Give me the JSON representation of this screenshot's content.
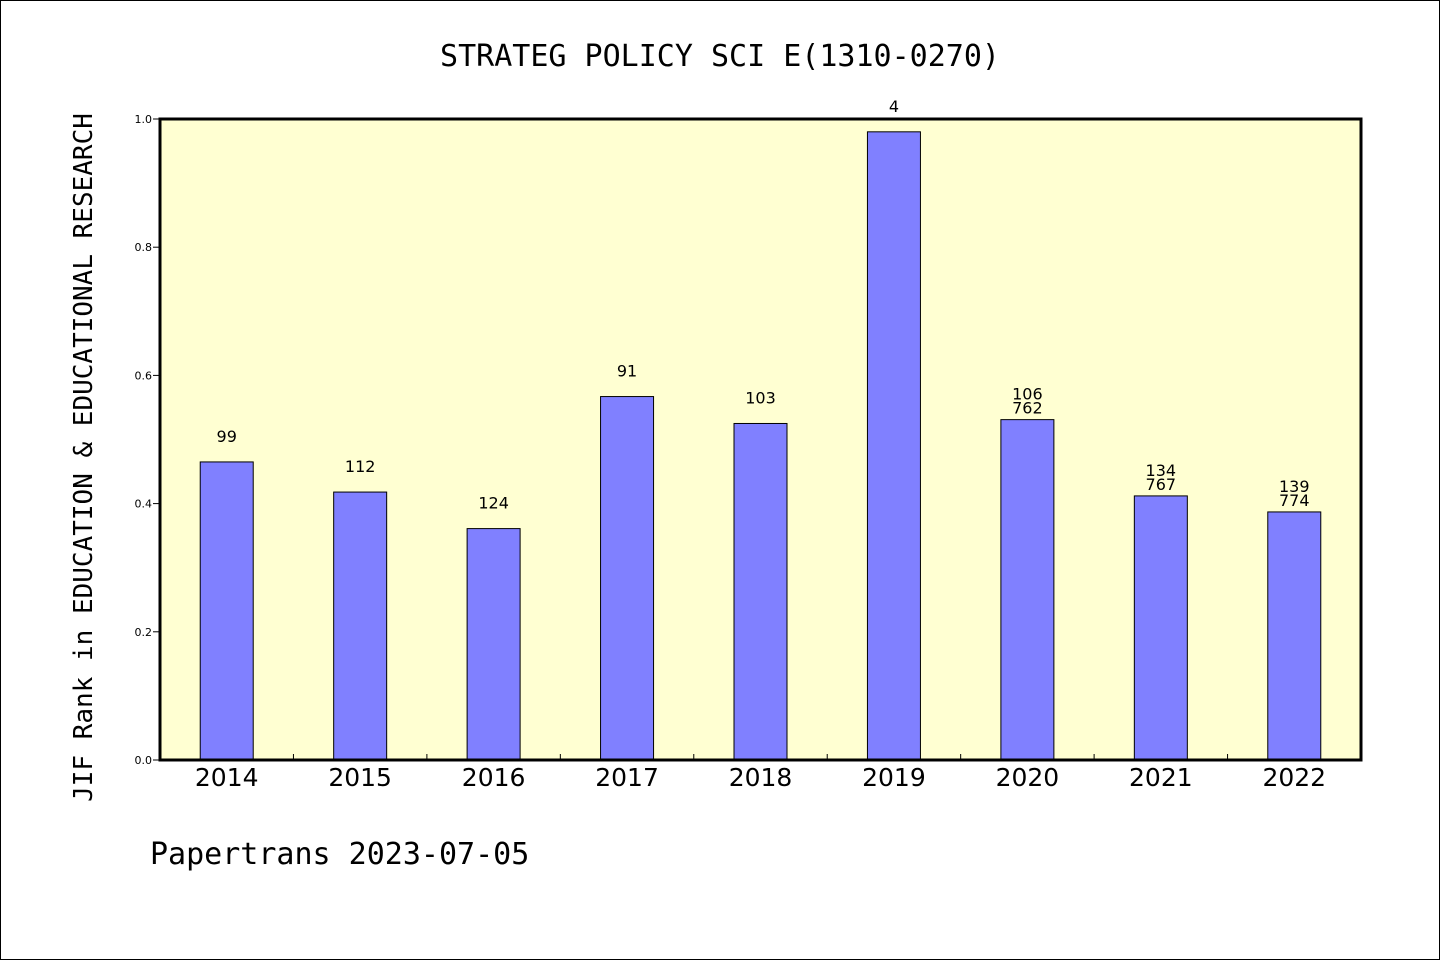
{
  "footer": "Papertrans 2023-07-05",
  "colors": {
    "plot_background": "#ffffd2",
    "bar_fill": "#8080ff",
    "bar_stroke": "#000000",
    "axis": "#000000"
  },
  "chart_data": {
    "type": "bar",
    "title": "STRATEG POLICY SCI E(1310-0270)",
    "xlabel": "",
    "ylabel": "JIF Rank in EDUCATION & EDUCATIONAL RESEARCH",
    "ylim": [
      0,
      1.0
    ],
    "yticks": [
      "0.0",
      "0.2",
      "0.4",
      "0.6",
      "0.8",
      "1.0"
    ],
    "categories": [
      "2014",
      "2015",
      "2016",
      "2017",
      "2018",
      "2019",
      "2020",
      "2021",
      "2022"
    ],
    "values": [
      0.465,
      0.418,
      0.361,
      0.567,
      0.525,
      0.98,
      0.531,
      0.412,
      0.387
    ],
    "bar_labels": [
      [
        "99"
      ],
      [
        "112"
      ],
      [
        "124"
      ],
      [
        "91"
      ],
      [
        "103"
      ],
      [
        "4"
      ],
      [
        "106",
        "762"
      ],
      [
        "134",
        "767"
      ],
      [
        "139",
        "774"
      ]
    ],
    "grid": false,
    "legend": "none"
  }
}
